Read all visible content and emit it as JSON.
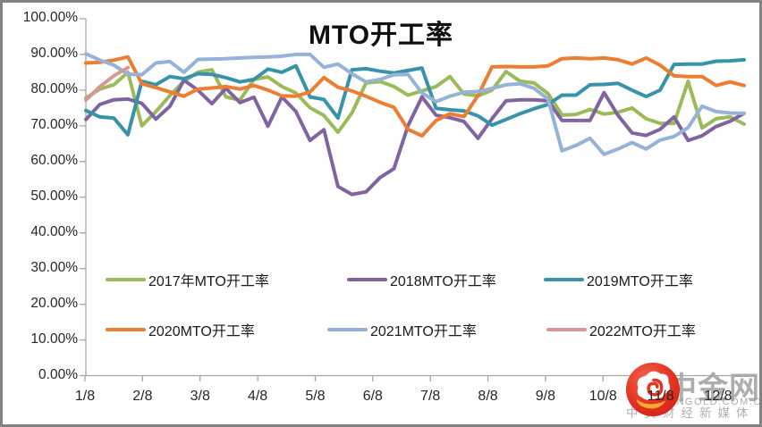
{
  "title": "MTO开工率",
  "watermark": {
    "brand": "中金网",
    "domain": "CNGOLD.COM.CN",
    "tagline": "中文财经新媒体",
    "logo_color": "#e63322",
    "logo_accent": "#f9b233"
  },
  "chart_data": {
    "type": "line",
    "title": "MTO开工率",
    "xlabel": "",
    "ylabel": "",
    "ylim": [
      0,
      100
    ],
    "grid": false,
    "legend_position": "inside-bottom-two-rows",
    "x_tick_labels": [
      "1/8",
      "2/8",
      "3/8",
      "4/8",
      "5/8",
      "6/8",
      "7/8",
      "8/8",
      "9/8",
      "10/8",
      "11/8",
      "12/8"
    ],
    "y_tick_labels": [
      "100.00%",
      "90.00%",
      "80.00%",
      "70.00%",
      "60.00%",
      "50.00%",
      "40.00%",
      "30.00%",
      "20.00%",
      "10.00%",
      "0.00%"
    ],
    "series": [
      {
        "id": "2017",
        "name": "2017年MTO开工率",
        "color": "#9BBB59",
        "values": [
          77.8,
          80.3,
          81.5,
          85.0,
          70.0,
          74.0,
          78.5,
          82.5,
          85.0,
          85.7,
          78.1,
          77.2,
          83.0,
          83.7,
          81.0,
          79.2,
          75.1,
          72.9,
          68.2,
          73.6,
          82.0,
          82.4,
          81.0,
          78.6,
          79.8,
          81.0,
          83.8,
          78.9,
          78.4,
          80.0,
          85.2,
          82.5,
          82.0,
          79.0,
          73.0,
          73.2,
          74.6,
          73.3,
          73.8,
          75.0,
          72.0,
          70.7,
          70.7,
          82.5,
          69.4,
          72.0,
          72.5,
          70.5
        ]
      },
      {
        "id": "2018",
        "name": "2018MTO开工率",
        "color": "#8064A2",
        "values": [
          71.8,
          76.0,
          77.3,
          77.5,
          76.3,
          71.9,
          75.5,
          82.8,
          80.0,
          76.2,
          80.5,
          76.5,
          78.0,
          69.9,
          78.1,
          74.0,
          65.9,
          68.9,
          53.0,
          50.8,
          51.5,
          55.5,
          58.0,
          70.0,
          78.1,
          73.0,
          72.3,
          71.2,
          66.5,
          72.0,
          77.0,
          77.3,
          77.3,
          77.0,
          71.5,
          71.5,
          71.5,
          79.3,
          72.9,
          68.0,
          67.3,
          69.0,
          72.5,
          65.9,
          67.2,
          69.8,
          71.3,
          73.5
        ]
      },
      {
        "id": "2019",
        "name": "2019MTO开工率",
        "color": "#3793A9",
        "values": [
          74.3,
          72.5,
          72.2,
          67.5,
          82.5,
          81.5,
          83.8,
          83.2,
          84.6,
          84.4,
          83.5,
          82.3,
          83.0,
          85.9,
          85.0,
          86.8,
          78.1,
          77.4,
          72.2,
          85.7,
          86.0,
          85.3,
          84.8,
          85.5,
          86.2,
          74.9,
          74.5,
          74.2,
          72.8,
          70.2,
          71.8,
          73.4,
          74.8,
          76.0,
          78.6,
          78.6,
          81.5,
          81.6,
          81.9,
          80.0,
          78.2,
          80.0,
          87.2,
          87.3,
          87.3,
          88.1,
          88.2,
          88.5
        ]
      },
      {
        "id": "2020",
        "name": "2020MTO开工率",
        "color": "#ED7D31",
        "values": [
          87.6,
          87.8,
          88.4,
          89.3,
          81.8,
          80.7,
          79.5,
          78.3,
          80.3,
          80.6,
          81.0,
          80.3,
          81.3,
          80.0,
          78.4,
          78.3,
          79.5,
          83.5,
          80.8,
          79.8,
          78.3,
          76.6,
          75.2,
          69.0,
          67.2,
          71.5,
          73.4,
          72.6,
          78.5,
          86.5,
          86.6,
          86.5,
          86.5,
          86.8,
          88.8,
          89.0,
          88.8,
          89.0,
          88.5,
          87.3,
          89.0,
          87.0,
          84.0,
          83.8,
          83.8,
          81.3,
          82.3,
          81.3
        ]
      },
      {
        "id": "2021",
        "name": "2021MTO开工率",
        "color": "#95B3D7",
        "values": [
          90.2,
          88.4,
          87.0,
          84.5,
          84.3,
          87.6,
          88.0,
          85.0,
          88.6,
          88.7,
          88.8,
          89.0,
          89.2,
          89.3,
          89.5,
          90.0,
          90.0,
          86.4,
          87.3,
          84.6,
          82.3,
          83.0,
          84.3,
          84.4,
          79.2,
          76.8,
          78.3,
          79.4,
          79.6,
          80.5,
          81.5,
          81.8,
          80.5,
          77.5,
          63.0,
          64.5,
          66.5,
          62.0,
          63.5,
          65.3,
          63.5,
          66.0,
          67.0,
          69.5,
          75.5,
          74.0,
          73.6,
          73.5
        ]
      },
      {
        "id": "2022",
        "name": "2022MTO开工率",
        "color": "#D99694",
        "values": [
          77.2,
          81.0,
          84.0,
          86.3
        ]
      }
    ]
  }
}
